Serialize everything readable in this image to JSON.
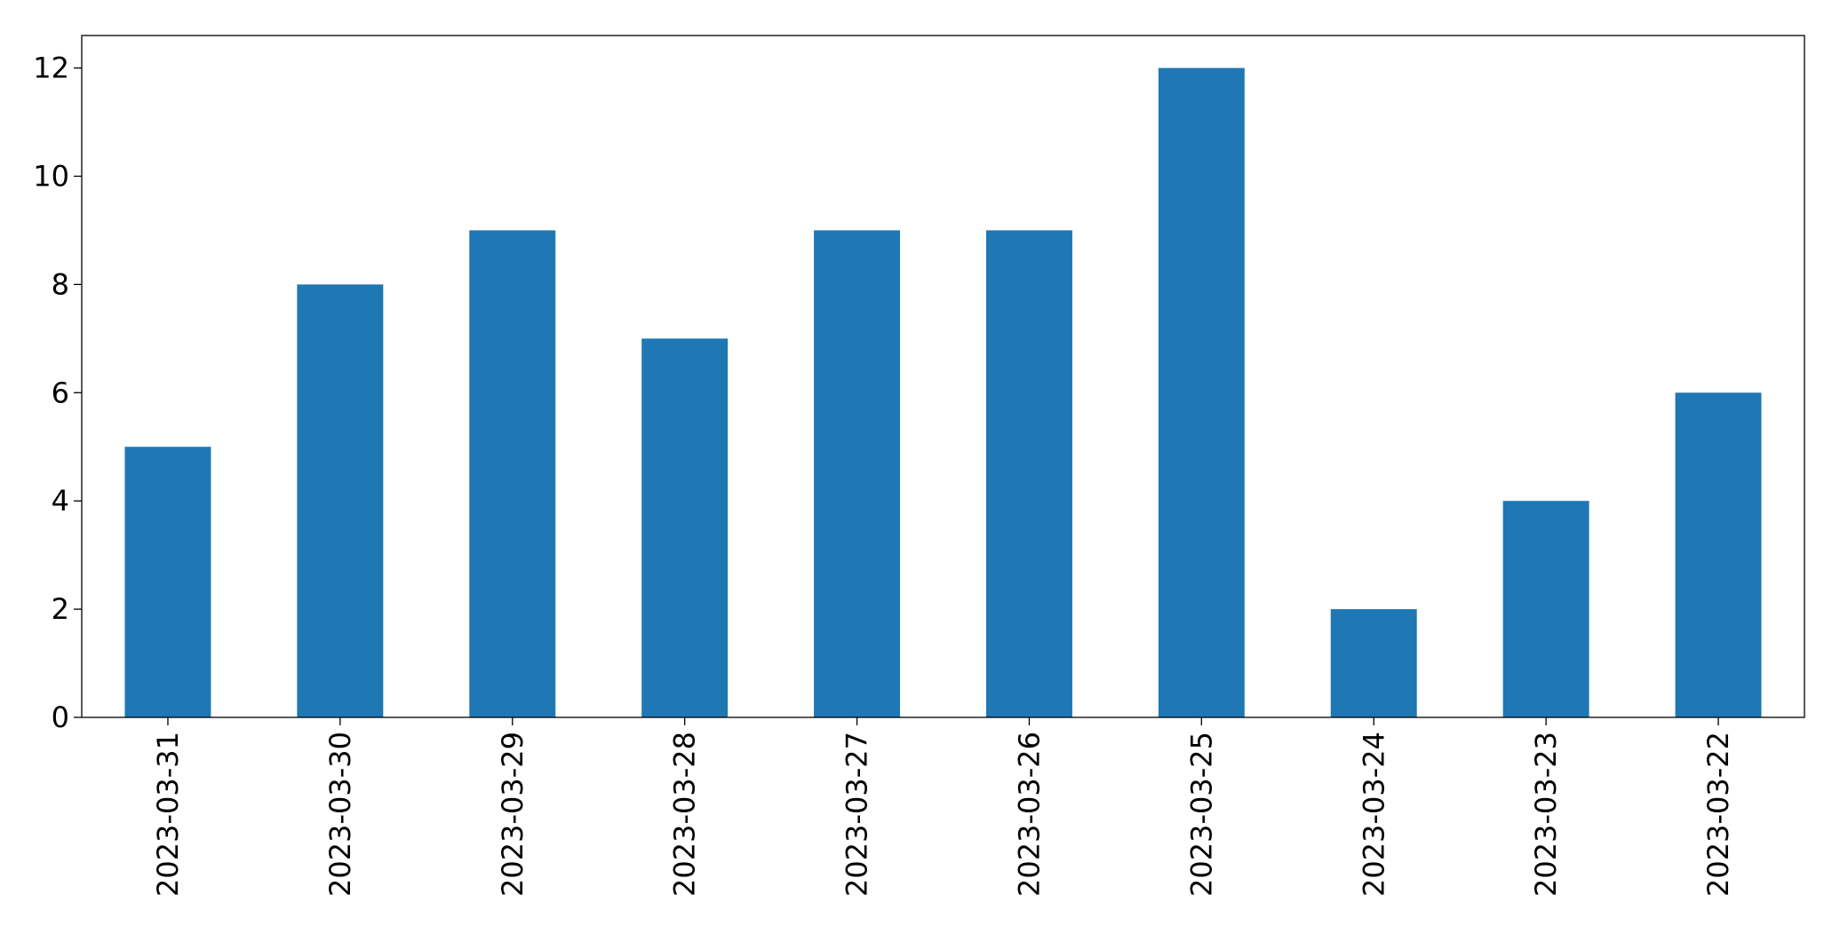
{
  "chart_data": {
    "type": "bar",
    "categories": [
      "2023-03-31",
      "2023-03-30",
      "2023-03-29",
      "2023-03-28",
      "2023-03-27",
      "2023-03-26",
      "2023-03-25",
      "2023-03-24",
      "2023-03-23",
      "2023-03-22"
    ],
    "values": [
      5,
      8,
      9,
      7,
      9,
      9,
      12,
      2,
      4,
      6
    ],
    "color": "#1f77b4",
    "ylim": [
      0,
      12.6
    ],
    "yticks": [
      0,
      2,
      4,
      6,
      8,
      10,
      12
    ],
    "grid": false
  }
}
